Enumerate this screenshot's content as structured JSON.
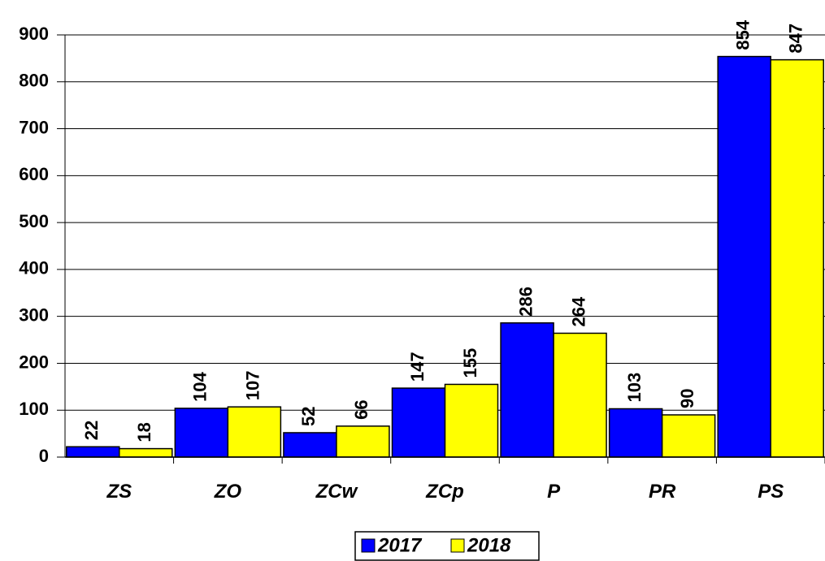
{
  "chart_data": {
    "type": "bar",
    "categories": [
      "ZS",
      "ZO",
      "ZCw",
      "ZCp",
      "P",
      "PR",
      "PS"
    ],
    "series": [
      {
        "name": "2017",
        "color": "#0000ff",
        "values": [
          22,
          104,
          52,
          147,
          286,
          103,
          854
        ]
      },
      {
        "name": "2018",
        "color": "#ffff00",
        "values": [
          18,
          107,
          66,
          155,
          264,
          90,
          847
        ]
      }
    ],
    "ylim": [
      0,
      900
    ],
    "yticks": [
      0,
      100,
      200,
      300,
      400,
      500,
      600,
      700,
      800,
      900
    ],
    "grid": true,
    "legend": "bottom"
  }
}
